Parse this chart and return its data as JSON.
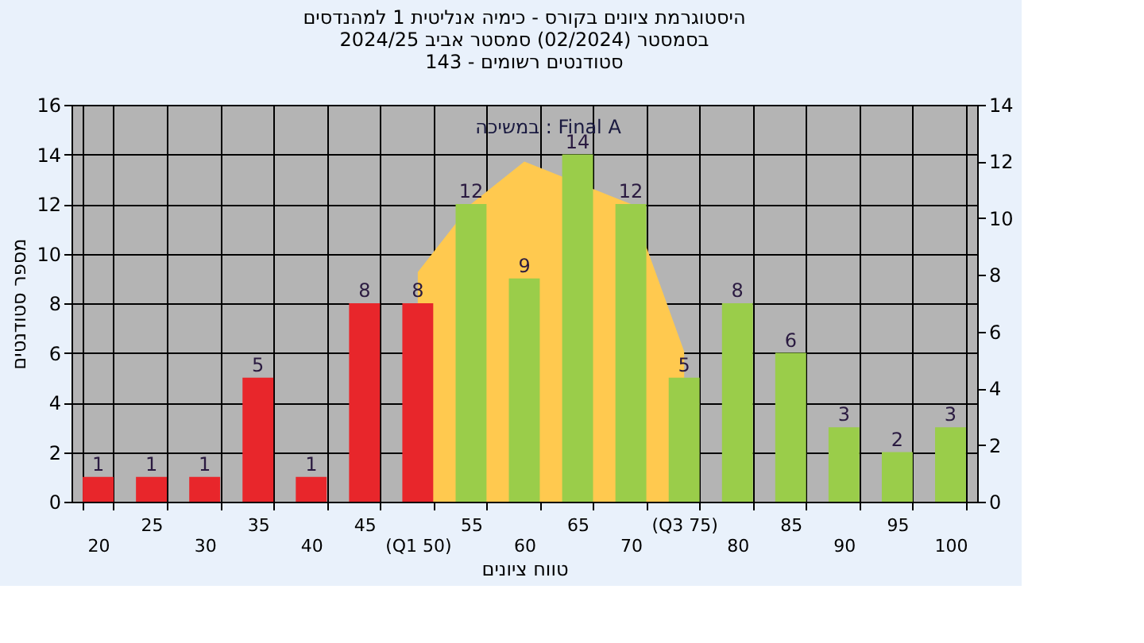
{
  "chart_data": {
    "type": "bar",
    "title": [
      "היסטוגרמת ציונים בקורס - כימיה אנליטית 1 למהנדסים",
      "בסמסטר (02/2024) סמסטר אביב 2024/25",
      "סטודנטים רשומים - 143"
    ],
    "xlabel": "טווח ציונים",
    "ylabel": "מספר סטודנטים",
    "annotations": [
      "במשיכה : Final A"
    ],
    "categories": [
      "20",
      "25",
      "30",
      "35",
      "40",
      "45",
      "(Q1 50)",
      "55",
      "60",
      "65",
      "70",
      "(Q3 75)",
      "80",
      "85",
      "90",
      "95",
      "100"
    ],
    "series": [
      {
        "type": "area",
        "axis": "y2",
        "color": "#ffc94f",
        "values": [
          null,
          null,
          null,
          null,
          null,
          null,
          8.1,
          10.5,
          12,
          null,
          10.5,
          5.3,
          null,
          null,
          null,
          null,
          null
        ]
      },
      {
        "values": [
          1,
          1,
          1,
          5,
          1,
          8,
          8,
          12,
          9,
          14,
          12,
          5,
          8,
          6,
          3,
          2,
          3
        ],
        "value_labels": [
          "1",
          "1",
          "1",
          "5",
          "1",
          "8",
          "8",
          "12",
          "9",
          "14",
          "12",
          "5",
          "8",
          "6",
          "3",
          "2",
          "3"
        ],
        "colors": [
          "#e8262b",
          "#e8262b",
          "#e8262b",
          "#e8262b",
          "#e8262b",
          "#e8262b",
          "#e8262b",
          "#9acd4a",
          "#9acd4a",
          "#9acd4a",
          "#9acd4a",
          "#9acd4a",
          "#9acd4a",
          "#9acd4a",
          "#9acd4a",
          "#9acd4a",
          "#9acd4a"
        ]
      }
    ],
    "ylim": [
      0,
      16
    ],
    "yticks": [
      0,
      2,
      4,
      6,
      8,
      10,
      12,
      14,
      16
    ],
    "y2lim": [
      0,
      14
    ],
    "y2ticks": [
      0,
      2,
      4,
      6,
      8,
      10,
      12,
      14
    ],
    "grid": true
  }
}
